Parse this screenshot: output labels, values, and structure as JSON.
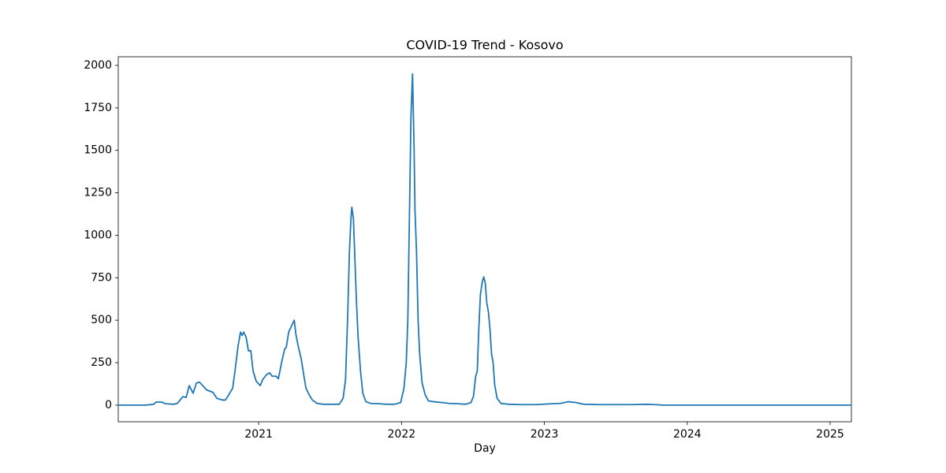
{
  "chart_data": {
    "type": "line",
    "title": "COVID-19 Trend - Kosovo",
    "x_label": "Day",
    "x": [
      2020.017,
      2020.21,
      2020.265,
      2020.282,
      2020.32,
      2020.348,
      2020.403,
      2020.431,
      2020.47,
      2020.492,
      2020.514,
      2020.541,
      2020.564,
      2020.586,
      2020.613,
      2020.635,
      2020.68,
      2020.707,
      2020.746,
      2020.768,
      2020.79,
      2020.818,
      2020.834,
      2020.856,
      2020.873,
      2020.884,
      2020.895,
      2020.912,
      2020.928,
      2020.945,
      2020.961,
      2020.983,
      2021.011,
      2021.028,
      2021.055,
      2021.077,
      2021.094,
      2021.122,
      2021.138,
      2021.16,
      2021.182,
      2021.193,
      2021.21,
      2021.232,
      2021.249,
      2021.26,
      2021.276,
      2021.298,
      2021.315,
      2021.331,
      2021.354,
      2021.376,
      2021.409,
      2021.453,
      2021.508,
      2021.564,
      2021.591,
      2021.608,
      2021.624,
      2021.635,
      2021.646,
      2021.652,
      2021.663,
      2021.674,
      2021.685,
      2021.696,
      2021.713,
      2021.729,
      2021.751,
      2021.785,
      2021.84,
      2021.895,
      2021.95,
      2021.994,
      2022.017,
      2022.033,
      2022.044,
      2022.055,
      2022.066,
      2022.077,
      2022.088,
      2022.094,
      2022.105,
      2022.116,
      2022.127,
      2022.144,
      2022.166,
      2022.188,
      2022.227,
      2022.282,
      2022.337,
      2022.392,
      2022.448,
      2022.486,
      2022.503,
      2022.519,
      2022.53,
      2022.541,
      2022.552,
      2022.564,
      2022.575,
      2022.586,
      2022.597,
      2022.608,
      2022.619,
      2022.63,
      2022.641,
      2022.652,
      2022.669,
      2022.696,
      2022.751,
      2022.834,
      2022.945,
      2023.055,
      2023.11,
      2023.166,
      2023.221,
      2023.276,
      2023.387,
      2023.608,
      2023.718,
      2023.773,
      2023.829,
      2025.149
    ],
    "values": [
      0,
      0,
      5,
      18,
      18,
      8,
      5,
      10,
      50,
      45,
      115,
      70,
      130,
      135,
      110,
      90,
      75,
      40,
      30,
      30,
      60,
      100,
      200,
      350,
      430,
      410,
      430,
      400,
      320,
      320,
      200,
      140,
      115,
      150,
      180,
      190,
      170,
      170,
      155,
      250,
      330,
      340,
      430,
      470,
      500,
      420,
      350,
      270,
      180,
      100,
      60,
      30,
      10,
      5,
      5,
      5,
      40,
      150,
      550,
      900,
      1100,
      1165,
      1100,
      850,
      600,
      400,
      200,
      70,
      20,
      10,
      8,
      5,
      5,
      15,
      100,
      250,
      500,
      1100,
      1700,
      1950,
      1500,
      1150,
      900,
      500,
      300,
      130,
      60,
      25,
      20,
      15,
      10,
      8,
      5,
      15,
      50,
      170,
      200,
      450,
      650,
      720,
      755,
      720,
      600,
      550,
      450,
      300,
      250,
      120,
      40,
      10,
      5,
      3,
      3,
      8,
      10,
      20,
      15,
      5,
      3,
      3,
      5,
      3,
      0,
      0
    ],
    "color": "#1f77b4",
    "xlim": [
      2020.017,
      2025.149
    ],
    "xticks": [
      2021,
      2022,
      2023,
      2024,
      2025
    ],
    "ylim": [
      -98,
      2051
    ],
    "yticks": [
      0,
      250,
      500,
      750,
      1000,
      1250,
      1500,
      1750,
      2000
    ]
  }
}
